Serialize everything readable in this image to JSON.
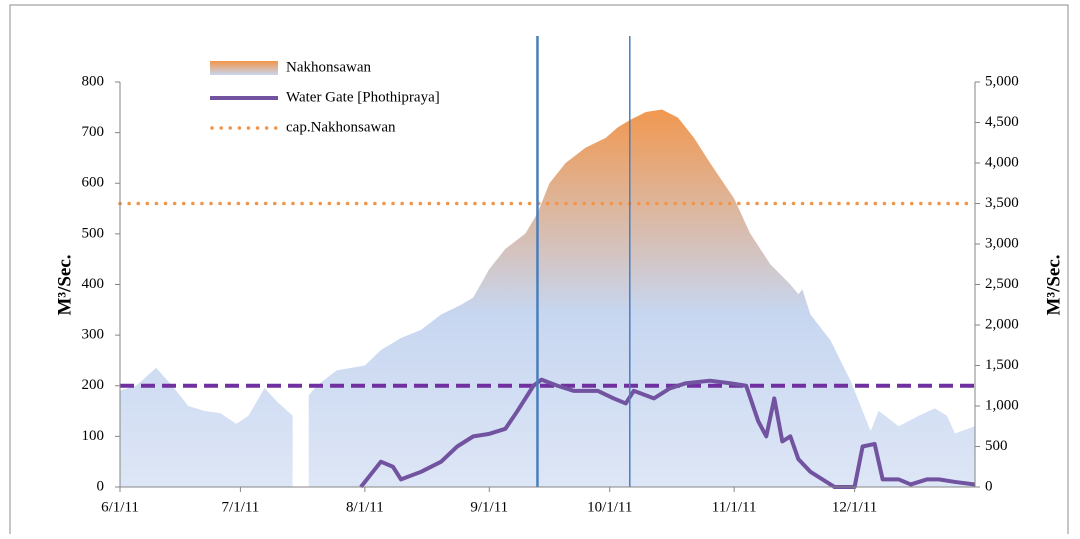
{
  "chart_data": {
    "type": "area-line",
    "y_label": "M³/Sec.",
    "y2_label": "M³/Sec.",
    "xlim": [
      "6/1/11",
      "12/31/11"
    ],
    "xticks": [
      "6/1/11",
      "7/1/11",
      "8/1/11",
      "9/1/11",
      "10/1/11",
      "11/1/11",
      "12/1/11"
    ],
    "ylim": [
      0,
      800
    ],
    "yticks": [
      0,
      100,
      200,
      300,
      400,
      500,
      600,
      700,
      800
    ],
    "y2lim": [
      0,
      5000
    ],
    "y2ticks": [
      0,
      {
        "value": 500,
        "label": "500"
      },
      {
        "value": 1000,
        "label": "1,000"
      },
      {
        "value": 1500,
        "label": "1,500"
      },
      {
        "value": 2000,
        "label": "2,000"
      },
      {
        "value": 2500,
        "label": "2,500"
      },
      {
        "value": 3000,
        "label": "3,000"
      },
      {
        "value": 3500,
        "label": "3,500"
      },
      {
        "value": 4000,
        "label": "4,000"
      },
      {
        "value": 4500,
        "label": "4,500"
      },
      {
        "value": 5000,
        "label": "5,000"
      }
    ],
    "legend": "top-left",
    "series": [
      {
        "name": "Nakhonsawan",
        "kind": "area",
        "axis": "y2",
        "color": "#f39548",
        "color2": "#c7d6f0",
        "x": [
          "6/1/11",
          "6/5/11",
          "6/10/11",
          "6/14/11",
          "6/18/11",
          "6/22/11",
          "6/26/11",
          "6/30/11",
          "7/3/11",
          "7/7/11",
          "7/10/11",
          "7/14/11",
          "7/16/11",
          "7/18/11",
          "7/20/11",
          "7/25/11",
          "8/1/11",
          "8/5/11",
          "8/10/11",
          "8/15/11",
          "8/20/11",
          "8/25/11",
          "8/28/11",
          "9/1/11",
          "9/5/11",
          "9/10/11",
          "9/13/11",
          "9/16/11",
          "9/20/11",
          "9/25/11",
          "9/30/11",
          "10/3/11",
          "10/6/11",
          "10/10/11",
          "10/14/11",
          "10/18/11",
          "10/22/11",
          "10/26/11",
          "11/1/11",
          "11/5/11",
          "11/10/11",
          "11/15/11",
          "11/17/11",
          "11/18/11",
          "11/20/11",
          "11/25/11",
          "11/30/11",
          "12/3/11",
          "12/5/11",
          "12/7/11",
          "12/12/11",
          "12/17/11",
          "12/21/11",
          "12/24/11",
          "12/26/11",
          "12/31/11"
        ],
        "values": [
          1190,
          1250,
          1470,
          1250,
          1000,
          940,
          910,
          780,
          880,
          1220,
          1060,
          880,
          null,
          1130,
          1250,
          1440,
          1500,
          1690,
          1840,
          1940,
          2130,
          2250,
          2340,
          2690,
          2940,
          3130,
          3380,
          3750,
          4000,
          4190,
          4310,
          4440,
          4530,
          4630,
          4660,
          4560,
          4310,
          4000,
          3560,
          3130,
          2750,
          2500,
          2380,
          2440,
          2130,
          1810,
          1310,
          940,
          690,
          940,
          750,
          880,
          970,
          880,
          660,
          750
        ]
      },
      {
        "name": "Water Gate [Phothipraya]",
        "kind": "line",
        "axis": "y",
        "color": "#7153a0",
        "x": [
          "7/31/11",
          "8/3/11",
          "8/5/11",
          "8/8/11",
          "8/10/11",
          "8/15/11",
          "8/20/11",
          "8/24/11",
          "8/28/11",
          "9/1/11",
          "9/5/11",
          "9/8/11",
          "9/12/11",
          "9/14/11",
          "9/18/11",
          "9/22/11",
          "9/28/11",
          "10/2/11",
          "10/5/11",
          "10/7/11",
          "10/12/11",
          "10/16/11",
          "10/20/11",
          "10/26/11",
          "10/31/11",
          "11/4/11",
          "11/7/11",
          "11/9/11",
          "11/11/11",
          "11/13/11",
          "11/15/11",
          "11/17/11",
          "11/20/11",
          "11/24/11",
          "11/26/11",
          "12/1/11",
          "12/3/11",
          "12/6/11",
          "12/8/11",
          "12/12/11",
          "12/15/11",
          "12/19/11",
          "12/22/11",
          "12/26/11",
          "12/31/11"
        ],
        "values": [
          0,
          30,
          50,
          40,
          15,
          30,
          50,
          80,
          100,
          105,
          115,
          150,
          200,
          212,
          200,
          190,
          190,
          175,
          165,
          190,
          175,
          195,
          205,
          210,
          205,
          200,
          130,
          100,
          175,
          90,
          100,
          55,
          30,
          10,
          0,
          0,
          80,
          85,
          15,
          15,
          5,
          15,
          15,
          10,
          5
        ]
      },
      {
        "name": "cap.Nakhonsawan",
        "kind": "hline",
        "axis": "y2",
        "color": "#f39548",
        "value": 3500
      }
    ],
    "reference_line": {
      "value": 200,
      "axis": "y",
      "color": "#7030a0"
    },
    "vlines": {
      "x": [
        "9/13/11",
        "10/6/11"
      ],
      "color": "#4a7ebb"
    }
  }
}
